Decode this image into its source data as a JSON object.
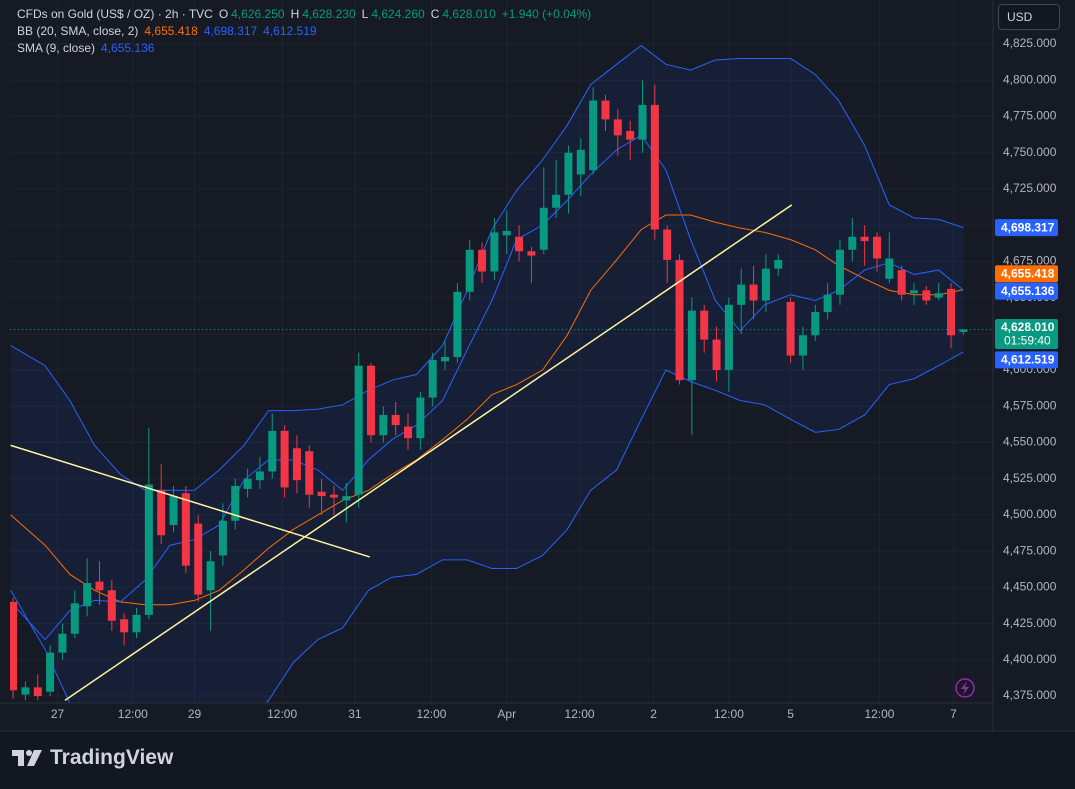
{
  "legend": {
    "symbol": "CFDs on Gold (US$ / OZ) · 2h · TVC",
    "ohlc": [
      {
        "label": "O",
        "value": "4,626.250"
      },
      {
        "label": "H",
        "value": "4,628.230"
      },
      {
        "label": "L",
        "value": "4,624.260"
      },
      {
        "label": "C",
        "value": "4,628.010"
      }
    ],
    "change": "+1.940 (+0.04%)",
    "bb": "BB (20, SMA, close, 2)",
    "bb_values": [
      "4,655.418",
      "4,698.317",
      "4,612.519"
    ],
    "sma": "SMA (9, close)",
    "sma_value": "4,655.136"
  },
  "currency": "USD",
  "brand": "TradingView",
  "chart_data": {
    "type": "candlestick",
    "up_color": "#089981",
    "down_color": "#f23645",
    "xlim": [
      -0.25,
      79.4
    ],
    "ylim": [
      4370.2,
      4855.4
    ],
    "grid": true,
    "countdown": "01:59:40",
    "xticks": [
      {
        "value": 3.6,
        "label": "27"
      },
      {
        "value": 9.7,
        "label": "12:00"
      },
      {
        "value": 14.7,
        "label": "29"
      },
      {
        "value": 21.8,
        "label": "12:00"
      },
      {
        "value": 27.7,
        "label": "31"
      },
      {
        "value": 33.9,
        "label": "12:00"
      },
      {
        "value": 40,
        "label": "Apr"
      },
      {
        "value": 45.9,
        "label": "12:00"
      },
      {
        "value": 51.9,
        "label": "2"
      },
      {
        "value": 58,
        "label": "12:00"
      },
      {
        "value": 63,
        "label": "5"
      },
      {
        "value": 70.2,
        "label": "12:00"
      },
      {
        "value": 76.2,
        "label": "7"
      }
    ],
    "yticks": [
      {
        "value": 4375,
        "label": "4,375.000"
      },
      {
        "value": 4400,
        "label": "4,400.000"
      },
      {
        "value": 4425,
        "label": "4,425.000"
      },
      {
        "value": 4450,
        "label": "4,450.000"
      },
      {
        "value": 4475,
        "label": "4,475.000"
      },
      {
        "value": 4500,
        "label": "4,500.000"
      },
      {
        "value": 4525,
        "label": "4,525.000"
      },
      {
        "value": 4550,
        "label": "4,550.000"
      },
      {
        "value": 4575,
        "label": "4,575.000"
      },
      {
        "value": 4600,
        "label": "4,600.000"
      },
      {
        "value": 4625,
        "label": "4,625.000"
      },
      {
        "value": 4650,
        "label": "4,650.000"
      },
      {
        "value": 4675,
        "label": "4,675.000"
      },
      {
        "value": 4700,
        "label": "4,700.000"
      },
      {
        "value": 4725,
        "label": "4,725.000"
      },
      {
        "value": 4750,
        "label": "4,750.000"
      },
      {
        "value": 4775,
        "label": "4,775.000"
      },
      {
        "value": 4800,
        "label": "4,800.000"
      },
      {
        "value": 4825,
        "label": "4,825.000"
      }
    ],
    "ohlc": {
      "open": [
        4440,
        4376,
        4381,
        4378,
        4405,
        4418,
        4437,
        4454,
        4448,
        4428,
        4419,
        4431,
        4517,
        4493,
        4515,
        4494,
        4448,
        4472,
        4496,
        4518,
        4524,
        4530,
        4558,
        4546,
        4544,
        4516,
        4514,
        4510,
        4514,
        4603,
        4555,
        4569,
        4561,
        4553,
        4581,
        4606,
        4609,
        4654,
        4683,
        4668,
        4693,
        4692,
        4682,
        4683,
        4712,
        4721,
        4735,
        4738,
        4786,
        4773,
        4765,
        4759,
        4783,
        4697,
        4676,
        4593,
        4641,
        4621,
        4600,
        4645,
        4659,
        4648,
        4670,
        4647,
        4610,
        4624,
        4640,
        4652,
        4683,
        4692,
        4692,
        4663,
        4669,
        4653,
        4655,
        4650,
        4656,
        4626.25
      ],
      "high": [
        4443,
        4385,
        4390,
        4410,
        4425,
        4448,
        4470,
        4468,
        4455,
        4432,
        4436,
        4560,
        4535,
        4520,
        4520,
        4500,
        4475,
        4508,
        4525,
        4532,
        4540,
        4570,
        4562,
        4555,
        4548,
        4525,
        4520,
        4522,
        4612,
        4605,
        4575,
        4578,
        4570,
        4585,
        4612,
        4620,
        4660,
        4690,
        4688,
        4705,
        4710,
        4700,
        4685,
        4740,
        4745,
        4755,
        4760,
        4795,
        4790,
        4780,
        4772,
        4800,
        4797,
        4700,
        4680,
        4650,
        4645,
        4630,
        4650,
        4670,
        4672,
        4680,
        4680,
        4650,
        4630,
        4645,
        4660,
        4690,
        4705,
        4700,
        4695,
        4695,
        4672,
        4660,
        4658,
        4660,
        4660,
        4628.23
      ],
      "low": [
        4373,
        4372,
        4372,
        4375,
        4400,
        4415,
        4430,
        4438,
        4420,
        4410,
        4415,
        4428,
        4480,
        4488,
        4460,
        4440,
        4420,
        4465,
        4490,
        4512,
        4518,
        4525,
        4512,
        4515,
        4505,
        4500,
        4500,
        4495,
        4505,
        4550,
        4550,
        4555,
        4545,
        4545,
        4575,
        4600,
        4605,
        4648,
        4660,
        4662,
        4680,
        4675,
        4660,
        4680,
        4705,
        4708,
        4720,
        4735,
        4765,
        4748,
        4745,
        4750,
        4690,
        4660,
        4590,
        4555,
        4612,
        4592,
        4585,
        4625,
        4635,
        4640,
        4665,
        4605,
        4600,
        4620,
        4635,
        4645,
        4675,
        4672,
        4668,
        4660,
        4648,
        4645,
        4645,
        4648,
        4615,
        4624.26
      ],
      "close": [
        4379,
        4381,
        4375,
        4405,
        4418,
        4439,
        4453,
        4448,
        4427,
        4419,
        4431,
        4521,
        4486,
        4513,
        4465,
        4445,
        4468,
        4496,
        4520,
        4525,
        4530,
        4558,
        4519,
        4524,
        4514,
        4513,
        4512,
        4513,
        4603,
        4555,
        4569,
        4562,
        4553,
        4581,
        4607,
        4609,
        4654,
        4683,
        4668,
        4695,
        4696,
        4682,
        4679,
        4712,
        4721,
        4750,
        4752,
        4786,
        4773,
        4762,
        4759,
        4783,
        4697,
        4676,
        4593,
        4641,
        4621,
        4600,
        4645,
        4659,
        4648,
        4670,
        4676,
        4610,
        4624,
        4640,
        4652,
        4683,
        4692,
        4689,
        4677,
        4677,
        4652,
        4655,
        4648,
        4653,
        4624,
        4628.01
      ]
    },
    "bb": {
      "upper_color": "#2962ff",
      "basis_color": "#ff6d00",
      "lower_color": "#2962ff",
      "fill": "rgba(41,98,255,0.08)",
      "x": [
        -0.2,
        2.6,
        4.6,
        6.6,
        8.7,
        10.7,
        12.7,
        14.7,
        16.7,
        18.7,
        20.7,
        22.7,
        24.7,
        26.7,
        28.8,
        30.7,
        32.7,
        34.8,
        36.8,
        38.8,
        40.8,
        42.9,
        44.9,
        46.8,
        48.9,
        50.9,
        52.9,
        54.9,
        56.9,
        58.9,
        60.9,
        63.0,
        65.0,
        66.9,
        69.0,
        71.0,
        73.0,
        75.0,
        77.0
      ],
      "upper": [
        4617,
        4603,
        4579,
        4548,
        4528,
        4517,
        4517,
        4517,
        4531,
        4548,
        4572,
        4572,
        4573,
        4576,
        4586,
        4593,
        4597,
        4617,
        4655,
        4697,
        4724,
        4745,
        4769,
        4797,
        4811,
        4824,
        4811,
        4807,
        4814,
        4815,
        4815,
        4815,
        4804,
        4786,
        4755,
        4714,
        4705,
        4704,
        4698.317
      ],
      "basis": [
        4500,
        4479,
        4459,
        4448,
        4440,
        4438,
        4438,
        4441,
        4448,
        4462,
        4477,
        4490,
        4500,
        4510,
        4517,
        4528,
        4538,
        4552,
        4566,
        4583,
        4590,
        4600,
        4624,
        4655,
        4676,
        4697,
        4707,
        4707,
        4702,
        4698,
        4695,
        4690,
        4683,
        4672,
        4663,
        4655,
        4652,
        4652,
        4655.418
      ],
      "lower": [
        4448,
        4407,
        4370,
        4340,
        4320,
        4318,
        4320,
        4330,
        4340,
        4355,
        4372,
        4398,
        4414,
        4422,
        4448,
        4457,
        4459,
        4469,
        4469,
        4463,
        4463,
        4472,
        4490,
        4517,
        4531,
        4566,
        4600,
        4592,
        4586,
        4579,
        4576,
        4566,
        4557,
        4559,
        4569,
        4590,
        4594,
        4603,
        4612.519
      ]
    },
    "sma": {
      "color": "#2962ff",
      "x": [
        -0.2,
        2.6,
        4.6,
        6.6,
        8.7,
        10.7,
        12.7,
        14.7,
        16.7,
        18.7,
        20.7,
        22.7,
        24.7,
        26.7,
        28.8,
        30.7,
        32.7,
        34.8,
        36.8,
        38.8,
        40.8,
        42.9,
        44.9,
        46.8,
        48.9,
        50.9,
        52.9,
        54.9,
        56.9,
        58.9,
        60.9,
        63.0,
        65.0,
        66.9,
        69.0,
        71.0,
        73.0,
        75.0,
        77.0
      ],
      "values": [
        4440,
        4414,
        4434,
        4441,
        4440,
        4455,
        4479,
        4483,
        4493,
        4524,
        4538,
        4538,
        4531,
        4517,
        4538,
        4552,
        4562,
        4579,
        4614,
        4648,
        4690,
        4700,
        4717,
        4735,
        4752,
        4762,
        4738,
        4690,
        4648,
        4627,
        4645,
        4652,
        4648,
        4655,
        4669,
        4674,
        4666,
        4669,
        4655.136
      ]
    },
    "trendlines": [
      {
        "color": "#fff59d",
        "x": [
          -0.2,
          28.9
        ],
        "values": [
          4548,
          4471
        ]
      },
      {
        "color": "#fff59d",
        "x": [
          4.2,
          63.1
        ],
        "values": [
          4372,
          4714
        ]
      }
    ]
  }
}
